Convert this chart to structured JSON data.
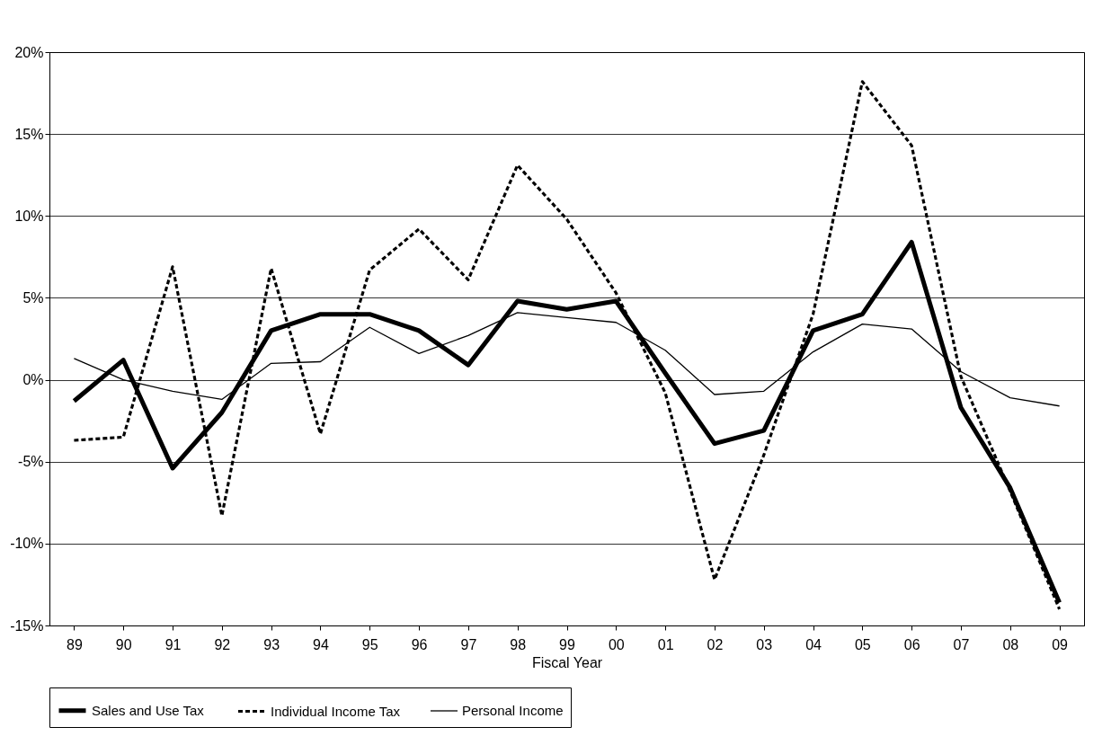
{
  "chart_data": {
    "type": "line",
    "xlabel": "Fiscal Year",
    "categories": [
      "89",
      "90",
      "91",
      "92",
      "93",
      "94",
      "95",
      "96",
      "97",
      "98",
      "99",
      "00",
      "01",
      "02",
      "03",
      "04",
      "05",
      "06",
      "07",
      "08",
      "09"
    ],
    "series": [
      {
        "name": "Sales and Use Tax",
        "color": "#000000",
        "line_style": "solid",
        "values": [
          -1.3,
          1.2,
          -5.4,
          -2.0,
          3.0,
          4.0,
          4.0,
          3.0,
          0.9,
          4.8,
          4.3,
          4.8,
          0.4,
          -3.9,
          -3.1,
          3.0,
          4.0,
          8.4,
          -1.7,
          -6.6,
          -13.6
        ]
      },
      {
        "name": "Individual Income Tax",
        "color": "#000000",
        "line_style": "dashed",
        "values": [
          -3.7,
          -3.5,
          6.9,
          -8.3,
          6.8,
          -3.3,
          6.7,
          9.2,
          6.1,
          13.1,
          9.8,
          5.3,
          -0.8,
          -12.2,
          -4.6,
          4.0,
          18.2,
          14.3,
          0.2,
          -6.8,
          -14.0
        ]
      },
      {
        "name": "Personal Income",
        "color": "#000000",
        "line_style": "solid",
        "values": [
          1.3,
          0.0,
          -0.7,
          -1.2,
          1.0,
          1.1,
          3.2,
          1.6,
          2.7,
          4.1,
          3.8,
          3.5,
          1.8,
          -0.9,
          -0.7,
          1.7,
          3.4,
          3.1,
          0.5,
          -1.1,
          -1.6
        ]
      }
    ],
    "ylim": [
      -15,
      20
    ],
    "yticks": [
      {
        "value": -15,
        "label": "-15%"
      },
      {
        "value": -10,
        "label": "-10%"
      },
      {
        "value": -5,
        "label": "-5%"
      },
      {
        "value": 0,
        "label": "0%"
      },
      {
        "value": 5,
        "label": "5%"
      },
      {
        "value": 10,
        "label": "10%"
      },
      {
        "value": 15,
        "label": "15%"
      },
      {
        "value": 20,
        "label": "20%"
      }
    ],
    "grid": "y",
    "legend": "bottom",
    "marker": "none"
  }
}
